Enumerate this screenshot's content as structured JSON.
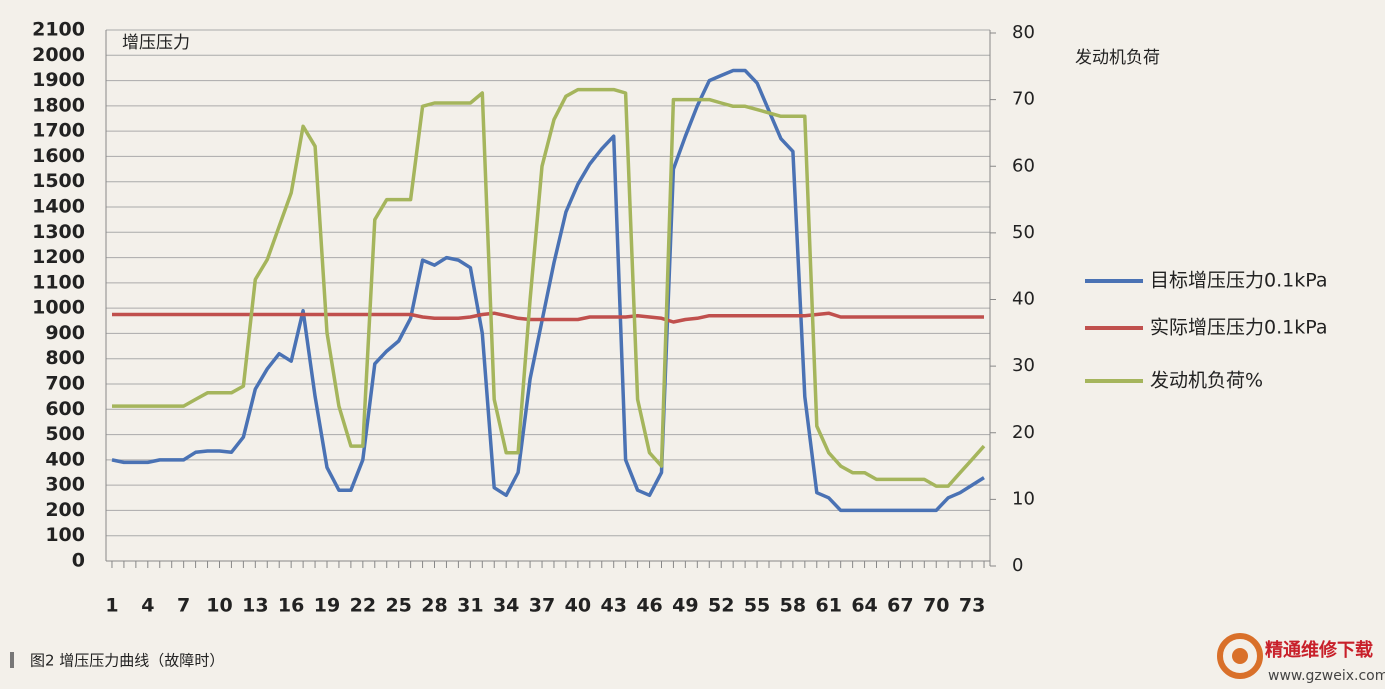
{
  "chart_data": {
    "type": "line",
    "y_label": "增压压力",
    "y2_label": "发动机负荷",
    "caption": "图2  增压压力曲线（故障时）",
    "watermark": "精通维修下载",
    "watermark_url": "www.gzweix.com",
    "x": [
      1,
      2,
      3,
      4,
      5,
      6,
      7,
      8,
      9,
      10,
      11,
      12,
      13,
      14,
      15,
      16,
      17,
      18,
      19,
      20,
      21,
      22,
      23,
      24,
      25,
      26,
      27,
      28,
      29,
      30,
      31,
      32,
      33,
      34,
      35,
      36,
      37,
      38,
      39,
      40,
      41,
      42,
      43,
      44,
      45,
      46,
      47,
      48,
      49,
      50,
      51,
      52,
      53,
      54,
      55,
      56,
      57,
      58,
      59,
      60,
      61,
      62,
      63,
      64,
      65,
      66,
      67,
      68,
      69,
      70,
      71,
      72,
      73,
      74
    ],
    "xlim": [
      0.5,
      74.5
    ],
    "xticks": [
      1,
      4,
      7,
      10,
      13,
      16,
      19,
      22,
      25,
      28,
      31,
      34,
      37,
      40,
      43,
      46,
      49,
      52,
      55,
      58,
      61,
      64,
      67,
      70,
      73
    ],
    "ylim": [
      0,
      2100
    ],
    "yticks": [
      0,
      100,
      200,
      300,
      400,
      500,
      600,
      700,
      800,
      900,
      1000,
      1100,
      1200,
      1300,
      1400,
      1500,
      1600,
      1700,
      1800,
      1900,
      2000,
      2100
    ],
    "y2lim": [
      0,
      80
    ],
    "y2ticks": [
      0,
      10,
      20,
      30,
      40,
      50,
      60,
      70,
      80
    ],
    "grid": true,
    "series": [
      {
        "name": "目标增压压力0.1kPa",
        "color": "#4a72b4",
        "values": [
          400,
          390,
          390,
          390,
          400,
          400,
          400,
          430,
          435,
          435,
          430,
          490,
          680,
          760,
          820,
          790,
          990,
          650,
          370,
          280,
          280,
          400,
          780,
          830,
          870,
          960,
          1190,
          1170,
          1200,
          1190,
          1160,
          900,
          290,
          260,
          350,
          720,
          950,
          1180,
          1380,
          1490,
          1570,
          1630,
          1680,
          400,
          280,
          260,
          350,
          1550,
          1680,
          1800,
          1900,
          1920,
          1940,
          1940,
          1890,
          1780,
          1670,
          1620,
          650,
          270,
          250,
          200,
          200,
          200,
          200,
          200,
          200,
          200,
          200,
          200,
          250,
          270,
          300,
          330
        ]
      },
      {
        "name": "实际增压压力0.1kPa",
        "color": "#c0504d",
        "values": [
          975,
          975,
          975,
          975,
          975,
          975,
          975,
          975,
          975,
          975,
          975,
          975,
          975,
          975,
          975,
          975,
          975,
          975,
          975,
          975,
          975,
          975,
          975,
          975,
          975,
          975,
          965,
          960,
          960,
          960,
          965,
          975,
          980,
          970,
          960,
          955,
          955,
          955,
          955,
          955,
          965,
          965,
          965,
          965,
          970,
          965,
          960,
          945,
          955,
          960,
          970,
          970,
          970,
          970,
          970,
          970,
          970,
          970,
          970,
          975,
          980,
          965,
          965,
          965,
          965,
          965,
          965,
          965,
          965,
          965,
          965,
          965,
          965,
          965
        ]
      },
      {
        "name": "发动机负荷%",
        "color": "#a5b55c",
        "axis": "y2",
        "values": [
          24,
          24,
          24,
          24,
          24,
          24,
          24,
          25,
          26,
          26,
          26,
          27,
          43,
          46,
          51,
          56,
          66,
          63,
          35,
          24,
          18,
          18,
          52,
          55,
          55,
          55,
          69,
          69.5,
          69.5,
          69.5,
          69.5,
          71,
          25,
          17,
          17,
          40,
          60,
          67,
          70.5,
          71.5,
          71.5,
          71.5,
          71.5,
          71,
          25,
          17,
          15,
          70,
          70,
          70,
          70,
          69.5,
          69,
          69,
          68.5,
          68,
          67.5,
          67.5,
          67.5,
          21,
          17,
          15,
          14,
          14,
          13,
          13,
          13,
          13,
          13,
          12,
          12,
          14,
          16,
          18
        ]
      }
    ],
    "legend": "right"
  }
}
